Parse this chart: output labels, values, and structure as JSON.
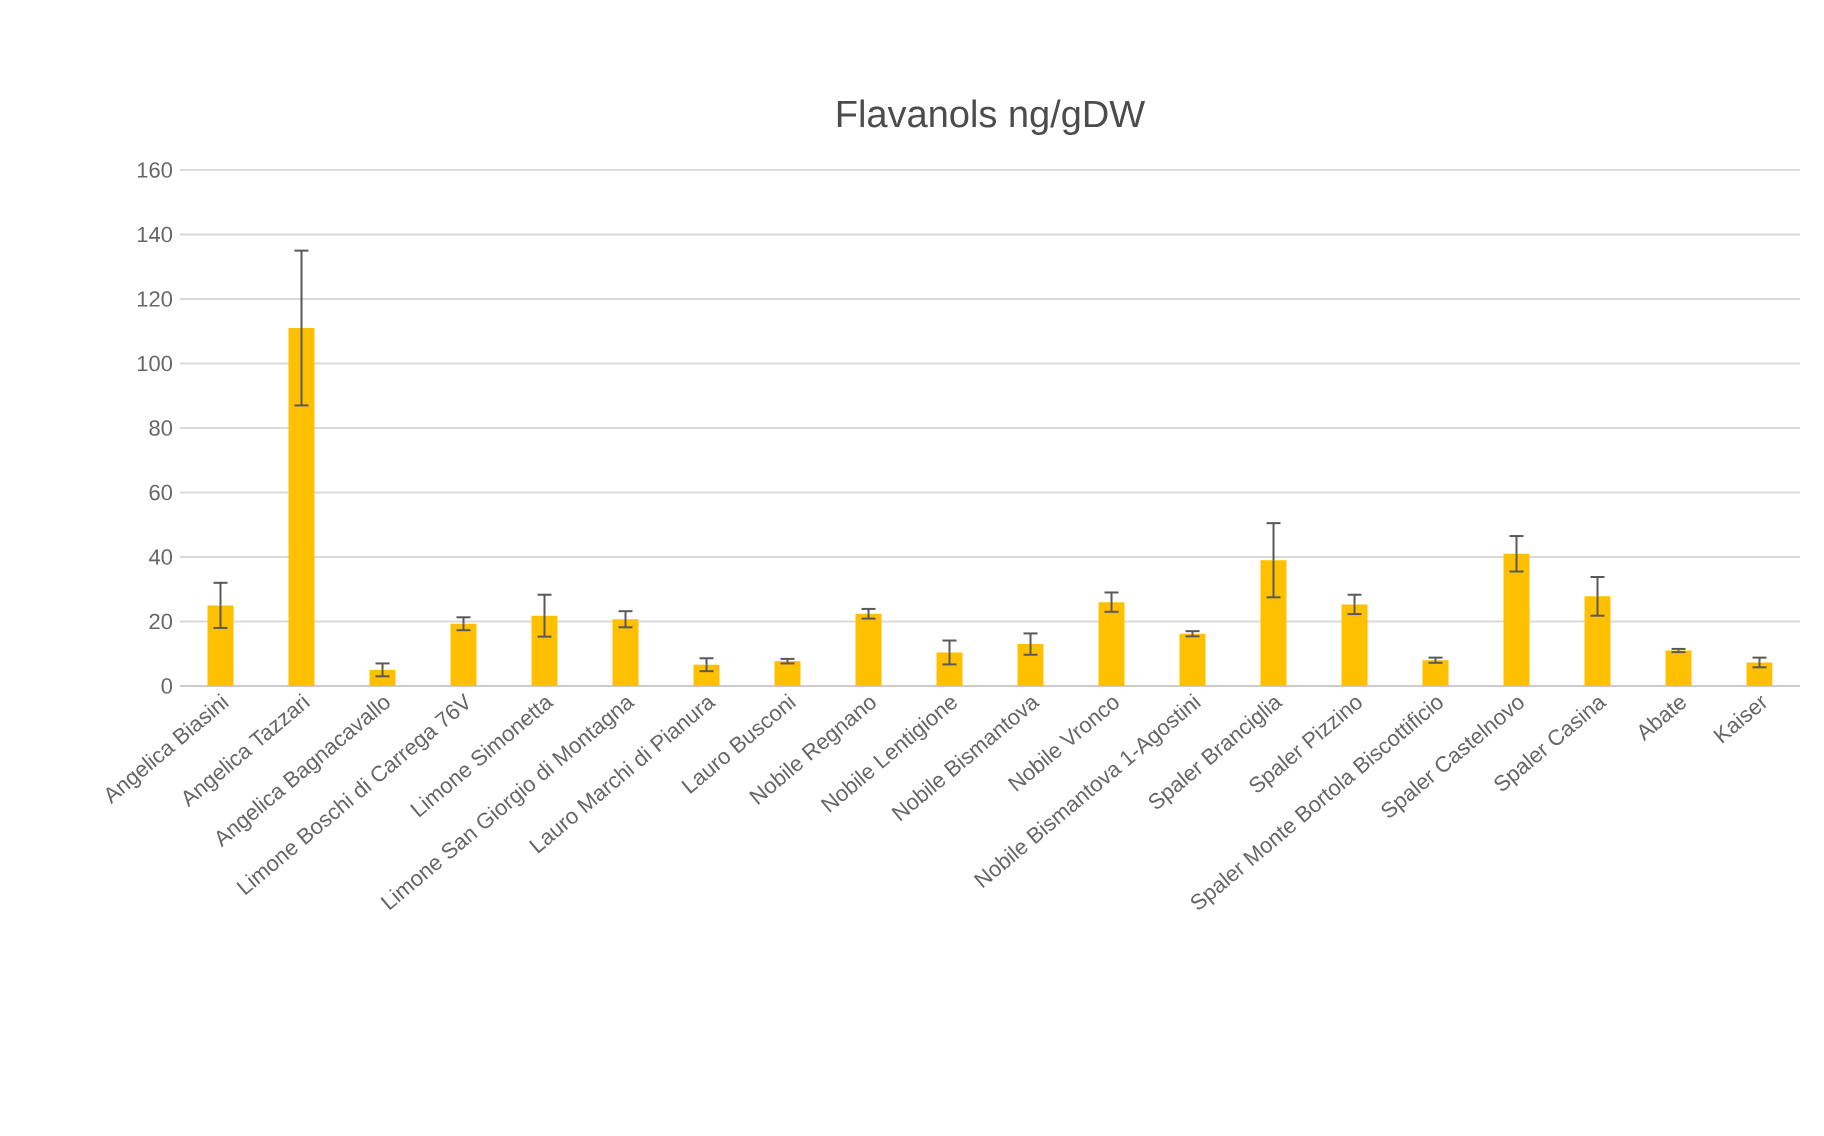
{
  "chart_data": {
    "type": "bar",
    "title": "Flavanols ng/gDW",
    "categories": [
      "Angelica Biasini",
      "Angelica Tazzari",
      "Angelica Bagnacavallo",
      "Limone Boschi di Carrega 76V",
      "Limone Simonetta",
      "Limone San Giorgio di Montagna",
      "Lauro Marchi di Pianura",
      "Lauro Busconi",
      "Nobile Regnano",
      "Nobile Lentigione",
      "Nobile Bismantova",
      "Nobile Vronco",
      "Nobile Bismantova 1-Agostini",
      "Spaler Branciglia",
      "Spaler Pizzino",
      "Spaler Monte Bortola Biscottificio",
      "Spaler Castelnovo",
      "Spaler Casina",
      "Abate",
      "Kaiser"
    ],
    "values": [
      25,
      111,
      5,
      19.3,
      21.8,
      20.7,
      6.6,
      7.7,
      22.4,
      10.4,
      13,
      26,
      16.2,
      39,
      25.3,
      8,
      41,
      27.8,
      11,
      7.3
    ],
    "errors": [
      7,
      24,
      2,
      2,
      6.5,
      2.5,
      2,
      0.7,
      1.5,
      3.7,
      3.3,
      3,
      0.8,
      11.5,
      3,
      0.8,
      5.5,
      6,
      0.5,
      1.5
    ],
    "color": "#ffc000",
    "ylim": [
      0,
      160
    ],
    "yticks": [
      0,
      20,
      40,
      60,
      80,
      100,
      120,
      140,
      160
    ],
    "grid": "y"
  }
}
